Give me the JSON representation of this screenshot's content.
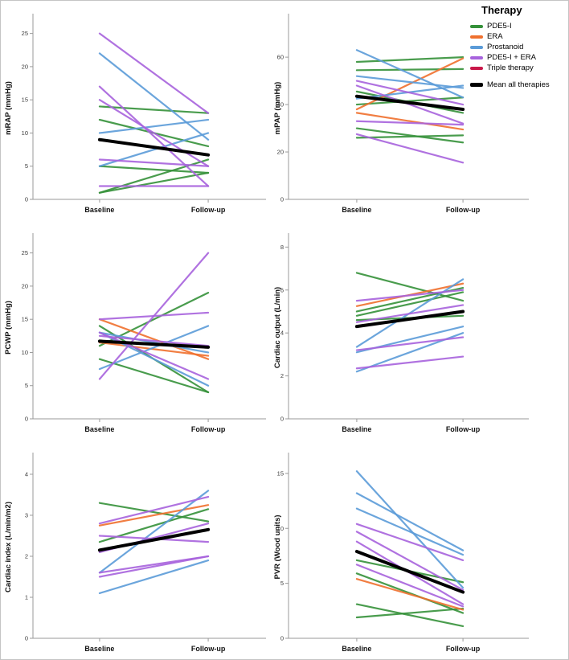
{
  "legend": {
    "title": "Therapy",
    "items": [
      {
        "label": "PDE5-I",
        "color": "#35913a",
        "mean": false
      },
      {
        "label": "ERA",
        "color": "#ef702e",
        "mean": false
      },
      {
        "label": "Prostanoid",
        "color": "#5b9bd8",
        "mean": false
      },
      {
        "label": "PDE5-I + ERA",
        "color": "#a763dd",
        "mean": false
      },
      {
        "label": "Triple therapy",
        "color": "#c9184a",
        "mean": false
      },
      {
        "label": "Mean all therapies",
        "color": "#000000",
        "mean": true
      }
    ]
  },
  "axis": {
    "categories": [
      "Baseline",
      "Follow-up"
    ]
  },
  "chart_data": [
    {
      "type": "line",
      "id": "mrap",
      "ylabel": "mRAP (mmHg)",
      "ylim": [
        0,
        27.5
      ],
      "yticks": [
        0,
        5,
        10,
        15,
        20,
        25
      ],
      "categories": [
        "Baseline",
        "Follow-up"
      ],
      "series": [
        {
          "therapy": "PDE5-I",
          "values": [
            [
              14,
              13
            ],
            [
              12,
              8
            ],
            [
              5,
              4
            ],
            [
              1,
              6
            ],
            [
              1,
              4
            ]
          ]
        },
        {
          "therapy": "Prostanoid",
          "values": [
            [
              22,
              9
            ],
            [
              10,
              12
            ],
            [
              5,
              10
            ]
          ]
        },
        {
          "therapy": "PDE5-I + ERA",
          "values": [
            [
              25,
              13
            ],
            [
              17,
              2
            ],
            [
              15,
              5
            ],
            [
              6,
              5
            ],
            [
              2,
              2
            ]
          ]
        }
      ],
      "mean": [
        9,
        6.7
      ]
    },
    {
      "type": "line",
      "id": "mpap",
      "ylabel": "mPAP (mmHg)",
      "ylim": [
        0,
        77
      ],
      "yticks": [
        0,
        20,
        40,
        60
      ],
      "categories": [
        "Baseline",
        "Follow-up"
      ],
      "series": [
        {
          "therapy": "PDE5-I",
          "values": [
            [
              58,
              60
            ],
            [
              54.5,
              55
            ],
            [
              45.5,
              36.5
            ],
            [
              40,
              43
            ],
            [
              30,
              24
            ],
            [
              26,
              27
            ]
          ]
        },
        {
          "therapy": "ERA",
          "values": [
            [
              38,
              59.5
            ],
            [
              36.5,
              29.5
            ]
          ]
        },
        {
          "therapy": "Prostanoid",
          "values": [
            [
              63,
              43
            ],
            [
              52,
              47
            ],
            [
              42.5,
              48
            ]
          ]
        },
        {
          "therapy": "PDE5-I + ERA",
          "values": [
            [
              50,
              40
            ],
            [
              48,
              32
            ],
            [
              33,
              31.5
            ],
            [
              27.5,
              15.5
            ]
          ]
        }
      ],
      "mean": [
        43.5,
        38
      ]
    },
    {
      "type": "line",
      "id": "pcwp",
      "ylabel": "PCWP (mmHg)",
      "ylim": [
        0,
        27.5
      ],
      "yticks": [
        0,
        5,
        10,
        15,
        20,
        25
      ],
      "categories": [
        "Baseline",
        "Follow-up"
      ],
      "series": [
        {
          "therapy": "PDE5-I",
          "values": [
            [
              14,
              4
            ],
            [
              11,
              19
            ],
            [
              9,
              4
            ]
          ]
        },
        {
          "therapy": "ERA",
          "values": [
            [
              15,
              9
            ],
            [
              11.5,
              9.5
            ]
          ]
        },
        {
          "therapy": "Prostanoid",
          "values": [
            [
              13,
              5
            ],
            [
              13,
              10
            ],
            [
              7.5,
              14
            ]
          ]
        },
        {
          "therapy": "PDE5-I + ERA",
          "values": [
            [
              15,
              16
            ],
            [
              13,
              6
            ],
            [
              12.5,
              11
            ],
            [
              6,
              25
            ]
          ]
        }
      ],
      "mean": [
        11.7,
        10.8
      ]
    },
    {
      "type": "line",
      "id": "cardiac-output",
      "ylabel": "Cardiac output (L/min)",
      "ylim": [
        0,
        8.5
      ],
      "yticks": [
        0,
        2,
        4,
        6,
        8
      ],
      "categories": [
        "Baseline",
        "Follow-up"
      ],
      "series": [
        {
          "therapy": "PDE5-I",
          "values": [
            [
              6.8,
              5.5
            ],
            [
              5.0,
              6.1
            ],
            [
              4.8,
              5.9
            ],
            [
              4.6,
              4.8
            ]
          ]
        },
        {
          "therapy": "ERA",
          "values": [
            [
              5.25,
              6.3
            ]
          ]
        },
        {
          "therapy": "Prostanoid",
          "values": [
            [
              3.35,
              6.5
            ],
            [
              3.1,
              4.3
            ],
            [
              2.2,
              4.0
            ]
          ]
        },
        {
          "therapy": "PDE5-I + ERA",
          "values": [
            [
              5.5,
              6.0
            ],
            [
              4.5,
              5.3
            ],
            [
              3.2,
              3.8
            ],
            [
              2.35,
              2.9
            ]
          ]
        }
      ],
      "mean": [
        4.3,
        5.0
      ]
    },
    {
      "type": "line",
      "id": "cardiac-index",
      "ylabel": "Cardiac index (L/min/m2)",
      "ylim": [
        0,
        4.45
      ],
      "yticks": [
        0,
        1,
        2,
        3,
        4
      ],
      "categories": [
        "Baseline",
        "Follow-up"
      ],
      "series": [
        {
          "therapy": "PDE5-I",
          "values": [
            [
              3.3,
              2.85
            ],
            [
              2.35,
              3.15
            ]
          ]
        },
        {
          "therapy": "ERA",
          "values": [
            [
              2.75,
              3.25
            ]
          ]
        },
        {
          "therapy": "Prostanoid",
          "values": [
            [
              1.6,
              3.6
            ],
            [
              1.1,
              1.9
            ]
          ]
        },
        {
          "therapy": "PDE5-I + ERA",
          "values": [
            [
              2.8,
              3.45
            ],
            [
              2.5,
              2.35
            ],
            [
              2.1,
              2.8
            ],
            [
              1.6,
              2.0
            ],
            [
              1.5,
              2.0
            ]
          ]
        }
      ],
      "mean": [
        2.15,
        2.65
      ]
    },
    {
      "type": "line",
      "id": "pvr",
      "ylabel": "PVR (Wood units)",
      "ylim": [
        0,
        16.6
      ],
      "yticks": [
        0,
        5,
        10,
        15
      ],
      "categories": [
        "Baseline",
        "Follow-up"
      ],
      "series": [
        {
          "therapy": "PDE5-I",
          "values": [
            [
              7.1,
              5.1
            ],
            [
              5.9,
              2.3
            ],
            [
              3.1,
              1.1
            ],
            [
              1.9,
              2.7
            ]
          ]
        },
        {
          "therapy": "ERA",
          "values": [
            [
              5.4,
              2.6
            ]
          ]
        },
        {
          "therapy": "Prostanoid",
          "values": [
            [
              15.2,
              4.6
            ],
            [
              13.2,
              8.0
            ],
            [
              11.8,
              7.6
            ]
          ]
        },
        {
          "therapy": "PDE5-I + ERA",
          "values": [
            [
              10.4,
              7.1
            ],
            [
              9.7,
              4.4
            ],
            [
              8.8,
              3.1
            ],
            [
              6.7,
              2.9
            ]
          ]
        }
      ],
      "mean": [
        7.9,
        4.2
      ]
    }
  ]
}
